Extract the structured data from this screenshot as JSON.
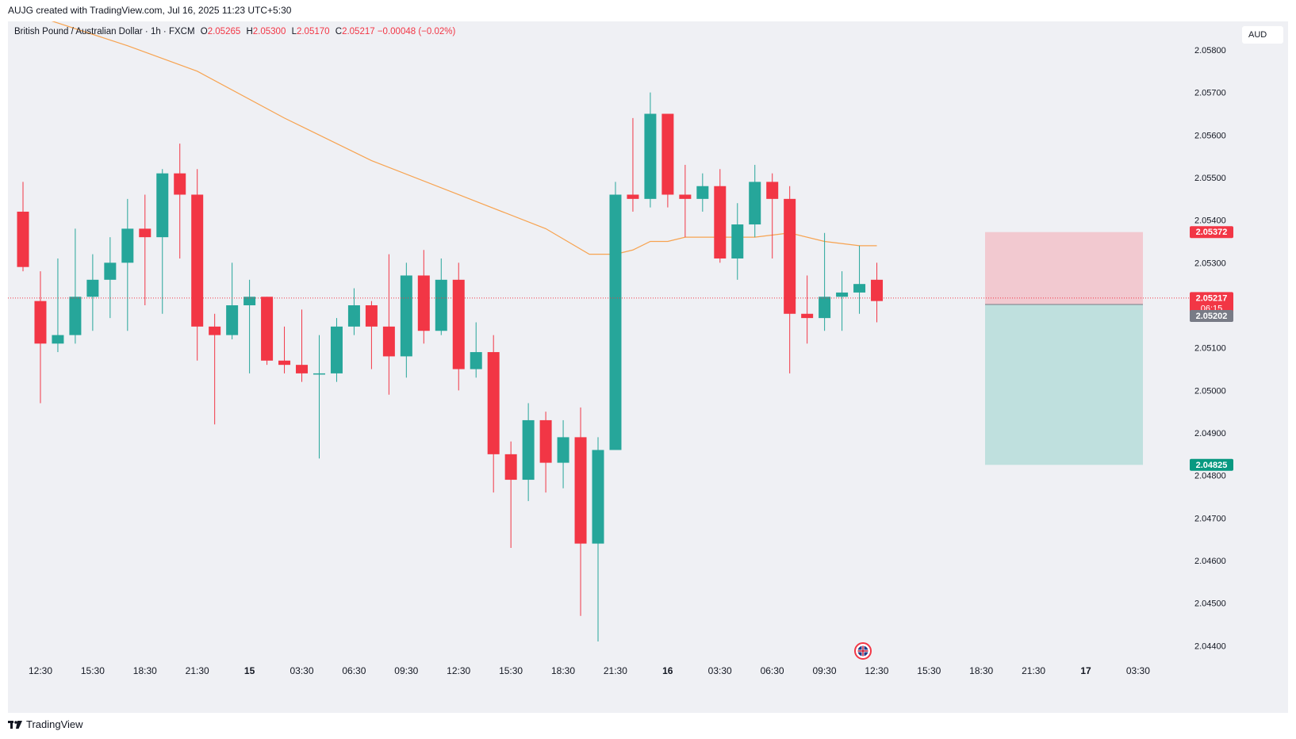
{
  "header": {
    "title": "AUJG created with TradingView.com, Jul 16, 2025 11:23 UTC+5:30"
  },
  "legend": {
    "symbol": "British Pound / Australian Dollar · 1h · FXCM",
    "open_label": "O",
    "open": "2.05265",
    "high_label": "H",
    "high": "2.05300",
    "low_label": "L",
    "low": "2.05170",
    "close_label": "C",
    "close": "2.05217",
    "change": "−0.00048 (−0.02%)"
  },
  "currency": "AUD",
  "footer": {
    "brand": "TradingView"
  },
  "colors": {
    "up": "#26a69a",
    "down": "#f23645",
    "ma": "#f7a350",
    "stop_zone": "#f2c9d0",
    "target_zone": "#bfe0de"
  },
  "chart_data": {
    "type": "candlestick",
    "y_ticks": [
      "2.05800",
      "2.05700",
      "2.05600",
      "2.05500",
      "2.05400",
      "2.05300",
      "2.05100",
      "2.05000",
      "2.04900",
      "2.04800",
      "2.04700",
      "2.04600",
      "2.04500",
      "2.04400"
    ],
    "x_ticks": [
      "12:30",
      "15:30",
      "18:30",
      "21:30",
      "15",
      "03:30",
      "06:30",
      "09:30",
      "12:30",
      "15:30",
      "18:30",
      "21:30",
      "16",
      "03:30",
      "06:30",
      "09:30",
      "12:30",
      "15:30",
      "18:30",
      "21:30",
      "17",
      "03:30"
    ],
    "ylim": [
      2.0438,
      2.0586
    ],
    "candles": [
      [
        2.0542,
        2.0549,
        2.0528,
        2.0529
      ],
      [
        2.0521,
        2.0528,
        2.0497,
        2.0511
      ],
      [
        2.0511,
        2.0531,
        2.0509,
        2.0513
      ],
      [
        2.0513,
        2.0538,
        2.0511,
        2.0522
      ],
      [
        2.0522,
        2.0532,
        2.0514,
        2.0526
      ],
      [
        2.0526,
        2.0536,
        2.0517,
        2.053
      ],
      [
        2.053,
        2.0545,
        2.0514,
        2.0538
      ],
      [
        2.0538,
        2.0546,
        2.052,
        2.0536
      ],
      [
        2.0536,
        2.0552,
        2.0518,
        2.0551
      ],
      [
        2.0551,
        2.0558,
        2.0531,
        2.0546
      ],
      [
        2.0546,
        2.0552,
        2.0507,
        2.0515
      ],
      [
        2.0515,
        2.0518,
        2.0492,
        2.0513
      ],
      [
        2.0513,
        2.053,
        2.0512,
        2.052
      ],
      [
        2.052,
        2.0526,
        2.0504,
        2.0522
      ],
      [
        2.0522,
        2.0522,
        2.0506,
        2.0507
      ],
      [
        2.0507,
        2.0515,
        2.0504,
        2.0506
      ],
      [
        2.0506,
        2.0519,
        2.0502,
        2.0504
      ],
      [
        2.0504,
        2.0513,
        2.0484,
        2.0504
      ],
      [
        2.0504,
        2.0517,
        2.0502,
        2.0515
      ],
      [
        2.0515,
        2.0524,
        2.0513,
        2.052
      ],
      [
        2.052,
        2.0521,
        2.0505,
        2.0515
      ],
      [
        2.0515,
        2.0532,
        2.0499,
        2.0508
      ],
      [
        2.0508,
        2.053,
        2.0503,
        2.0527
      ],
      [
        2.0527,
        2.0533,
        2.0511,
        2.0514
      ],
      [
        2.0514,
        2.0531,
        2.0513,
        2.0526
      ],
      [
        2.0526,
        2.053,
        2.05,
        2.0505
      ],
      [
        2.0505,
        2.0516,
        2.0503,
        2.0509
      ],
      [
        2.0509,
        2.0513,
        2.0476,
        2.0485
      ],
      [
        2.0485,
        2.0488,
        2.0463,
        2.0479
      ],
      [
        2.0479,
        2.0497,
        2.0474,
        2.0493
      ],
      [
        2.0493,
        2.0495,
        2.0476,
        2.0483
      ],
      [
        2.0483,
        2.0493,
        2.0477,
        2.0489
      ],
      [
        2.0489,
        2.0496,
        2.0447,
        2.0464
      ],
      [
        2.0464,
        2.0489,
        2.0441,
        2.0486
      ],
      [
        2.0486,
        2.0549,
        2.0486,
        2.0546
      ],
      [
        2.0546,
        2.0564,
        2.0542,
        2.0545
      ],
      [
        2.0545,
        2.057,
        2.0543,
        2.0565
      ],
      [
        2.0565,
        2.0565,
        2.0543,
        2.0546
      ],
      [
        2.0546,
        2.0553,
        2.0536,
        2.0545
      ],
      [
        2.0545,
        2.0551,
        2.0542,
        2.0548
      ],
      [
        2.0548,
        2.0552,
        2.053,
        2.0531
      ],
      [
        2.0531,
        2.0544,
        2.0526,
        2.0539
      ],
      [
        2.0539,
        2.0553,
        2.0536,
        2.0549
      ],
      [
        2.0549,
        2.0551,
        2.0531,
        2.0545
      ],
      [
        2.0545,
        2.0548,
        2.0504,
        2.0518
      ],
      [
        2.0518,
        2.0527,
        2.0511,
        2.0517
      ],
      [
        2.0517,
        2.0537,
        2.0514,
        2.0522
      ],
      [
        2.0522,
        2.0528,
        2.0514,
        2.0523
      ],
      [
        2.0523,
        2.0534,
        2.0518,
        2.0525
      ],
      [
        2.0526,
        2.053,
        2.0516,
        2.0521
      ]
    ],
    "ma_line": [
      [
        0,
        2.0589
      ],
      [
        6,
        2.0581
      ],
      [
        10,
        2.0575
      ],
      [
        15,
        2.0564
      ],
      [
        20,
        2.0554
      ],
      [
        25,
        2.0546
      ],
      [
        30,
        2.0538
      ],
      [
        32.5,
        2.0532
      ],
      [
        34,
        2.0532
      ],
      [
        35,
        2.0533
      ],
      [
        36,
        2.0535
      ],
      [
        37,
        2.0535
      ],
      [
        38,
        2.0536
      ],
      [
        40,
        2.0536
      ],
      [
        42,
        2.0536
      ],
      [
        44,
        2.0537
      ],
      [
        46,
        2.0535
      ],
      [
        48,
        2.0534
      ],
      [
        49,
        2.0534
      ]
    ],
    "markers": [
      {
        "label": "2.05372",
        "value": 2.05372,
        "color": "#f23645"
      },
      {
        "label": "2.05217",
        "sub": "06:15",
        "value": 2.05217,
        "color": "#f23645"
      },
      {
        "label": "2.05202",
        "value": 2.05202,
        "color": "#787b86"
      },
      {
        "label": "2.04825",
        "value": 2.04825,
        "color": "#089981"
      }
    ],
    "position": {
      "entry": 2.05202,
      "stop": 2.05372,
      "target": 2.04825
    }
  }
}
